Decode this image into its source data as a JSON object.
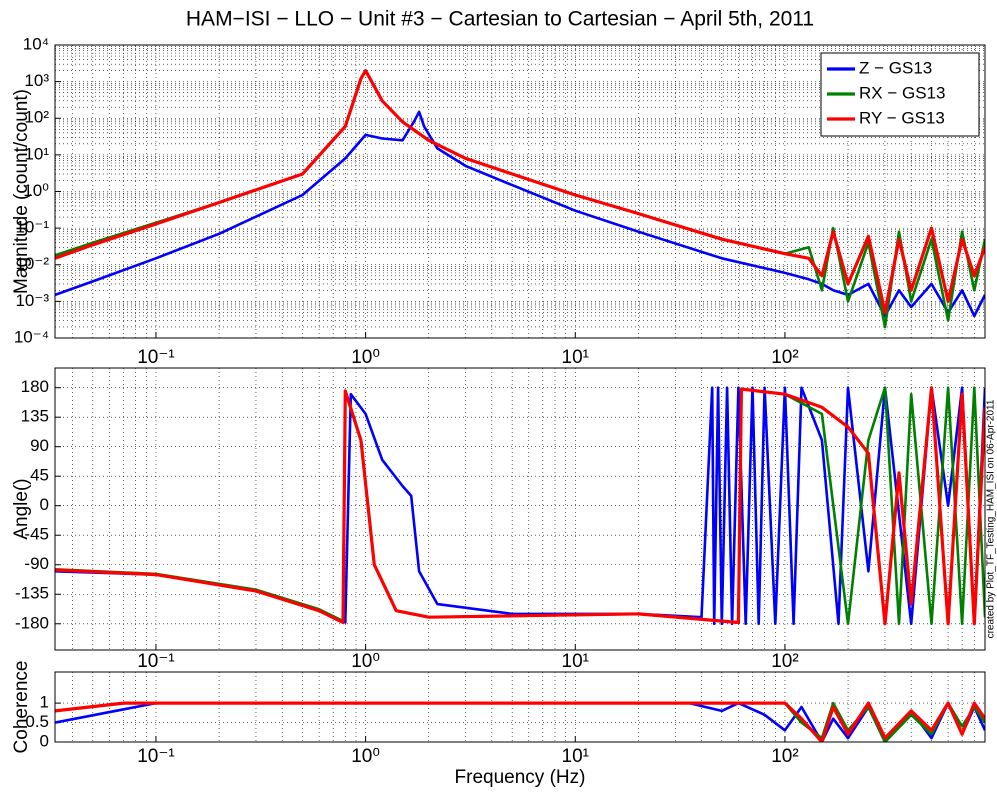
{
  "chart_data": [
    {
      "type": "line",
      "title": "HAM−ISI − LLO − Unit #3 − Cartesian to Cartesian − April 5th, 2011",
      "ylabel": "Magnitude (count/count)",
      "xscale": "log",
      "yscale": "log",
      "grid": true,
      "minor_grid": true,
      "legend": "upper right",
      "xlim": [
        0.033,
        900
      ],
      "ylim": [
        0.0001,
        10000
      ],
      "xticks": [
        {
          "value": 0.1,
          "label": "10⁻¹"
        },
        {
          "value": 1,
          "label": "10⁰"
        },
        {
          "value": 10,
          "label": "10¹"
        },
        {
          "value": 100,
          "label": "10²"
        }
      ],
      "yticks": [
        {
          "value": 0.0001,
          "label": "10⁻⁴"
        },
        {
          "value": 0.001,
          "label": "10⁻³"
        },
        {
          "value": 0.01,
          "label": "10⁻²"
        },
        {
          "value": 0.1,
          "label": "10⁻¹"
        },
        {
          "value": 1,
          "label": "10⁰"
        },
        {
          "value": 10,
          "label": "10¹"
        },
        {
          "value": 100,
          "label": "10²"
        },
        {
          "value": 1000,
          "label": "10³"
        },
        {
          "value": 10000,
          "label": "10⁴"
        }
      ],
      "series": [
        {
          "name": "Z − GS13",
          "color": "#0000ff",
          "x": [
            0.033,
            0.05,
            0.1,
            0.2,
            0.5,
            0.8,
            1,
            1.2,
            1.5,
            1.7,
            1.8,
            1.9,
            2.2,
            3,
            5,
            10,
            20,
            50,
            100,
            130,
            150,
            170,
            200,
            250,
            300,
            350,
            400,
            500,
            600,
            700,
            800,
            900
          ],
          "values": [
            0.0015,
            0.0035,
            0.015,
            0.07,
            0.8,
            8,
            35,
            28,
            25,
            80,
            150,
            60,
            15,
            5,
            1.5,
            0.3,
            0.08,
            0.015,
            0.006,
            0.004,
            0.003,
            0.002,
            0.0015,
            0.003,
            0.0004,
            0.002,
            0.0007,
            0.003,
            0.0005,
            0.002,
            0.0004,
            0.0015
          ]
        },
        {
          "name": "RX − GS13",
          "color": "#008000",
          "x": [
            0.033,
            0.05,
            0.1,
            0.2,
            0.5,
            0.8,
            0.95,
            1,
            1.05,
            1.2,
            1.5,
            2,
            3,
            5,
            10,
            20,
            50,
            100,
            130,
            150,
            170,
            200,
            250,
            300,
            350,
            400,
            500,
            600,
            700,
            800,
            900
          ],
          "values": [
            0.018,
            0.04,
            0.14,
            0.5,
            3,
            60,
            1200,
            2000,
            1200,
            300,
            80,
            25,
            8,
            3,
            0.8,
            0.25,
            0.05,
            0.02,
            0.03,
            0.002,
            0.1,
            0.001,
            0.04,
            0.0002,
            0.08,
            0.001,
            0.05,
            0.0003,
            0.08,
            0.002,
            0.05
          ]
        },
        {
          "name": "RY − GS13",
          "color": "#ff0000",
          "x": [
            0.033,
            0.05,
            0.1,
            0.2,
            0.5,
            0.8,
            0.95,
            1,
            1.05,
            1.2,
            1.5,
            2,
            3,
            5,
            10,
            20,
            50,
            100,
            130,
            150,
            170,
            200,
            250,
            300,
            350,
            400,
            500,
            600,
            700,
            800,
            900
          ],
          "values": [
            0.015,
            0.035,
            0.13,
            0.5,
            3,
            60,
            1200,
            2000,
            1200,
            300,
            80,
            25,
            8,
            3,
            0.8,
            0.25,
            0.05,
            0.02,
            0.015,
            0.005,
            0.08,
            0.003,
            0.06,
            0.0005,
            0.05,
            0.002,
            0.1,
            0.001,
            0.05,
            0.005,
            0.03
          ]
        }
      ]
    },
    {
      "type": "line",
      "ylabel": "Angle()",
      "xscale": "log",
      "grid": true,
      "minor_grid": true,
      "annotation": "created by Plot_TF_Testing_HAM_ISI on 06-Apr-2011",
      "xlim": [
        0.033,
        900
      ],
      "ylim": [
        -220,
        210
      ],
      "xticks": [
        {
          "value": 0.1,
          "label": "10⁻¹"
        },
        {
          "value": 1,
          "label": "10⁰"
        },
        {
          "value": 10,
          "label": "10¹"
        },
        {
          "value": 100,
          "label": "10²"
        }
      ],
      "yticks": [
        180,
        135,
        90,
        45,
        0,
        -45,
        -90,
        -135,
        -180
      ],
      "series": [
        {
          "name": "Z − GS13",
          "color": "#0000ff",
          "x": [
            0.033,
            0.1,
            0.3,
            0.6,
            0.8,
            0.85,
            1,
            1.2,
            1.5,
            1.65,
            1.8,
            2.2,
            5,
            20,
            40,
            45,
            46,
            48,
            50,
            53,
            56,
            60,
            65,
            70,
            75,
            80,
            90,
            100,
            110,
            120,
            150,
            180,
            200,
            250,
            300,
            400,
            500,
            600,
            700,
            800,
            900
          ],
          "values": [
            -100,
            -105,
            -130,
            -160,
            -178,
            170,
            140,
            70,
            30,
            15,
            -100,
            -150,
            -165,
            -165,
            -170,
            180,
            -180,
            180,
            -180,
            180,
            -180,
            180,
            -180,
            180,
            -180,
            180,
            -180,
            180,
            -180,
            180,
            100,
            -180,
            180,
            -100,
            180,
            -180,
            180,
            0,
            180,
            -180,
            180
          ]
        },
        {
          "name": "RX − GS13",
          "color": "#008000",
          "x": [
            0.033,
            0.1,
            0.3,
            0.6,
            0.78,
            0.8,
            0.95,
            1.1,
            1.4,
            2,
            20,
            60,
            62,
            100,
            150,
            200,
            250,
            300,
            350,
            400,
            500,
            600,
            700,
            800,
            900
          ],
          "values": [
            -97,
            -104,
            -128,
            -158,
            -176,
            175,
            100,
            -90,
            -160,
            -170,
            -165,
            -178,
            178,
            170,
            140,
            -180,
            100,
            180,
            -180,
            170,
            -180,
            180,
            -180,
            180,
            -170
          ]
        },
        {
          "name": "RY − GS13",
          "color": "#ff0000",
          "x": [
            0.033,
            0.1,
            0.3,
            0.6,
            0.78,
            0.8,
            0.95,
            1.1,
            1.4,
            2,
            20,
            60,
            62,
            100,
            150,
            200,
            250,
            300,
            350,
            400,
            500,
            600,
            700,
            800,
            900
          ],
          "values": [
            -98,
            -105,
            -130,
            -160,
            -178,
            175,
            100,
            -90,
            -160,
            -170,
            -165,
            -178,
            178,
            170,
            150,
            120,
            80,
            -180,
            50,
            -150,
            180,
            -180,
            170,
            -180,
            150
          ]
        }
      ]
    },
    {
      "type": "line",
      "ylabel": "Coherence",
      "xlabel": "Frequency (Hz)",
      "xscale": "log",
      "grid": true,
      "minor_grid": true,
      "xlim": [
        0.033,
        900
      ],
      "ylim": [
        0,
        1.8
      ],
      "xticks": [
        {
          "value": 0.1,
          "label": "10⁻¹"
        },
        {
          "value": 1,
          "label": "10⁰"
        },
        {
          "value": 10,
          "label": "10¹"
        },
        {
          "value": 100,
          "label": "10²"
        }
      ],
      "yticks": [
        0,
        0.5,
        1
      ],
      "series": [
        {
          "name": "Z − GS13",
          "color": "#0000ff",
          "x": [
            0.033,
            0.1,
            1,
            35,
            50,
            60,
            80,
            100,
            120,
            150,
            170,
            200,
            250,
            300,
            400,
            500,
            600,
            700,
            800,
            900
          ],
          "values": [
            0.5,
            1,
            1,
            1,
            0.8,
            1,
            0.7,
            0.3,
            0.9,
            0,
            0.6,
            0.1,
            0.9,
            0,
            0.8,
            0.1,
            1,
            0.2,
            0.9,
            0.3
          ]
        },
        {
          "name": "RX − GS13",
          "color": "#008000",
          "x": [
            0.033,
            0.07,
            1,
            100,
            120,
            150,
            170,
            200,
            250,
            300,
            400,
            500,
            600,
            700,
            800,
            900
          ],
          "values": [
            0.8,
            1,
            1,
            1,
            0.5,
            0.1,
            1,
            0.3,
            0.9,
            0,
            0.7,
            0.2,
            1,
            0.4,
            0.9,
            0.5
          ]
        },
        {
          "name": "RY − GS13",
          "color": "#ff0000",
          "x": [
            0.033,
            0.07,
            1,
            100,
            120,
            150,
            170,
            200,
            250,
            300,
            400,
            500,
            600,
            700,
            800,
            900
          ],
          "values": [
            0.8,
            1,
            1,
            1,
            0.6,
            0,
            0.9,
            0.2,
            1,
            0.1,
            0.8,
            0.3,
            1,
            0.2,
            1,
            0.6
          ]
        }
      ]
    }
  ]
}
